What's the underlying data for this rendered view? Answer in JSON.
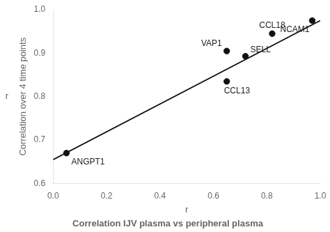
{
  "chart_data": {
    "type": "scatter",
    "subtitle": "Correlation IJV plasma vs peripheral plasma",
    "xlabel": "r",
    "ylabel": "Correlation over 4 time points",
    "annotations": [
      "r"
    ],
    "series": [
      {
        "type": "scatter",
        "color": "#111111",
        "marker": "circle",
        "x": [
          0.05,
          0.65,
          0.72,
          0.65,
          0.82,
          0.97
        ],
        "values": [
          0.67,
          0.905,
          0.893,
          0.835,
          0.945,
          0.975
        ],
        "labels": [
          "ANGPT1",
          "VAP1",
          "SELL",
          "CCL13",
          "CCL18",
          "NCAM1"
        ]
      },
      {
        "type": "line",
        "color": "#111111",
        "line_style": "solid",
        "x": [
          0.0,
          1.0
        ],
        "values": [
          0.655,
          0.975
        ]
      }
    ],
    "xlim": [
      0.0,
      1.0
    ],
    "ylim": [
      0.6,
      1.0
    ],
    "xticks": [
      {
        "value": 0.0,
        "label": "0.0"
      },
      0.2,
      0.4,
      0.6,
      0.8,
      {
        "value": 1.0,
        "label": "1.0"
      }
    ],
    "yticks": [
      0.6,
      0.7,
      0.8,
      0.9,
      {
        "value": 1.0,
        "label": "1.0"
      }
    ],
    "grid": false
  }
}
